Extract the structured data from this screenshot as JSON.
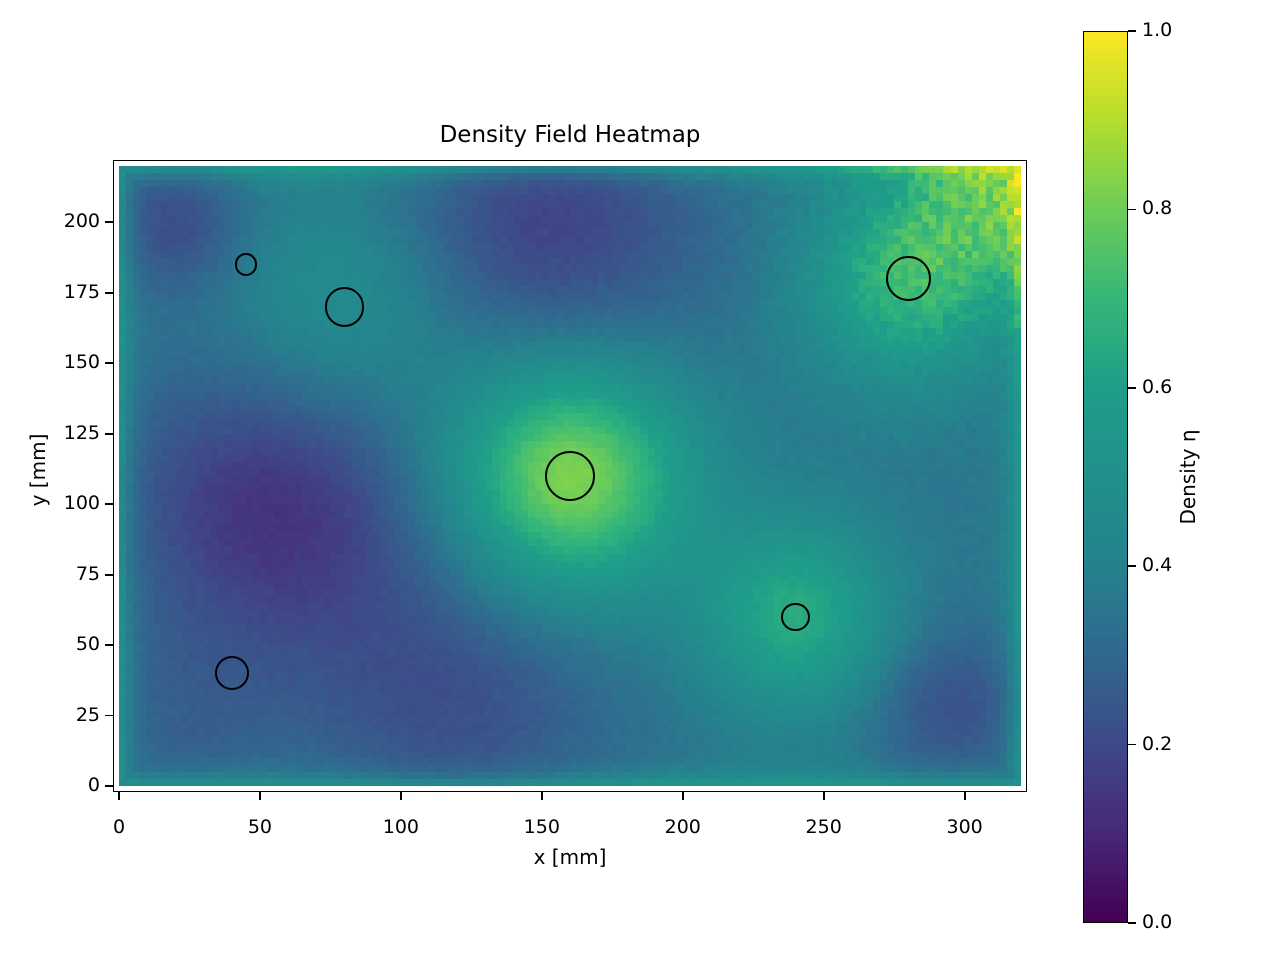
{
  "chart_data": {
    "type": "heatmap",
    "title": "Density Field Heatmap",
    "xlabel": "x [mm]",
    "ylabel": "y [mm]",
    "x_ticks": [
      0,
      50,
      100,
      150,
      200,
      250,
      300
    ],
    "y_ticks": [
      0,
      25,
      50,
      75,
      100,
      125,
      150,
      175,
      200
    ],
    "xlim_mm": [
      0,
      320
    ],
    "ylim_mm": [
      0,
      220
    ],
    "grid": {
      "nx": 128,
      "ny": 88,
      "cell_mm": 2.5
    },
    "colorbar": {
      "label": "Density η",
      "tick_labels": [
        "1.0",
        "0.8",
        "0.6",
        "0.4",
        "0.2",
        "0.0"
      ],
      "tick_values": [
        1.0,
        0.8,
        0.6,
        0.4,
        0.2,
        0.0
      ],
      "vmin": 0.0,
      "vmax": 1.0
    },
    "colormap": {
      "name": "viridis",
      "stops": [
        {
          "t": 0.0,
          "hex": "#440154"
        },
        {
          "t": 0.1,
          "hex": "#482878"
        },
        {
          "t": 0.2,
          "hex": "#3e4a89"
        },
        {
          "t": 0.3,
          "hex": "#31688e"
        },
        {
          "t": 0.4,
          "hex": "#26828e"
        },
        {
          "t": 0.5,
          "hex": "#21918c"
        },
        {
          "t": 0.6,
          "hex": "#1f9e89"
        },
        {
          "t": 0.7,
          "hex": "#35b779"
        },
        {
          "t": 0.8,
          "hex": "#6dcd59"
        },
        {
          "t": 0.9,
          "hex": "#b4de2c"
        },
        {
          "t": 1.0,
          "hex": "#fde725"
        }
      ]
    },
    "field_model": {
      "base": 0.35,
      "edge_band": {
        "boost": 0.17,
        "falloff_mm": 4,
        "inset_mm": 1.25,
        "edge_value": 0.52
      },
      "gaussians": [
        {
          "x": 160,
          "y": 110,
          "sigma": 30,
          "amp": 0.5,
          "note": "central hotspot peak ~0.85"
        },
        {
          "x": 240,
          "y": 60,
          "sigma": 24,
          "amp": 0.3,
          "note": "lower-right hotspot ~0.68"
        },
        {
          "x": 280,
          "y": 180,
          "sigma": 26,
          "amp": 0.34,
          "note": "upper-right hotspot ~0.75"
        },
        {
          "x": 320,
          "y": 218,
          "sigma": 26,
          "amp": 0.4,
          "note": "bright noisy top-right corner ~0.9"
        },
        {
          "x": 80,
          "y": 170,
          "sigma": 32,
          "amp": 0.16,
          "note": "mild green around upper-left circles"
        },
        {
          "x": 55,
          "y": 100,
          "sigma": 38,
          "amp": -0.22,
          "note": "dark purple left-middle region ~0.16"
        },
        {
          "x": 150,
          "y": 198,
          "sigma": 40,
          "amp": -0.18,
          "note": "dark band top-middle ~0.2"
        },
        {
          "x": 120,
          "y": 30,
          "sigma": 38,
          "amp": -0.13,
          "note": "dark bottom-left-middle ~0.26"
        },
        {
          "x": 295,
          "y": 28,
          "sigma": 20,
          "amp": -0.13,
          "note": "dark dip bottom-right ~0.25"
        },
        {
          "x": 20,
          "y": 200,
          "sigma": 18,
          "amp": -0.15,
          "note": "dark spot top-left ~0.22"
        },
        {
          "x": 20,
          "y": 20,
          "sigma": 25,
          "amp": -0.06,
          "note": "slightly dark bottom-left corner"
        }
      ],
      "noise": {
        "global_amp": 0.012,
        "corner_x": 320,
        "corner_y": 220,
        "corner_sigma": 45,
        "corner_amp": 0.065
      }
    },
    "markers": {
      "shape": "circle-outline",
      "color": "#000000",
      "points": [
        {
          "x": 45,
          "y": 185,
          "r_mm": 4
        },
        {
          "x": 80,
          "y": 170,
          "r_mm": 7
        },
        {
          "x": 160,
          "y": 110,
          "r_mm": 9
        },
        {
          "x": 240,
          "y": 60,
          "r_mm": 5
        },
        {
          "x": 280,
          "y": 180,
          "r_mm": 8
        },
        {
          "x": 40,
          "y": 40,
          "r_mm": 6
        }
      ]
    },
    "background": "#ffffff"
  }
}
